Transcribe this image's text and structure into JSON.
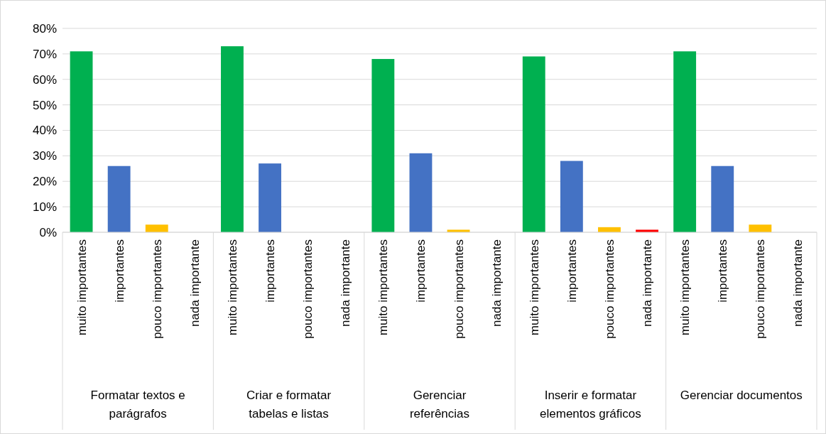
{
  "chart_data": {
    "type": "bar",
    "categories": [
      "muito importantes",
      "importantes",
      "pouco importantes",
      "nada importante",
      "muito importantes",
      "importantes",
      "pouco importantes",
      "nada importante",
      "muito importantes",
      "importantes",
      "pouco importantes",
      "nada importante",
      "muito importantes",
      "importantes",
      "pouco importantes",
      "nada importante",
      "muito importantes",
      "importantes",
      "pouco importantes",
      "nada importante"
    ],
    "values": [
      71,
      26,
      3,
      0,
      73,
      27,
      0,
      0,
      68,
      31,
      1,
      0,
      69,
      28,
      2,
      1,
      71,
      26,
      3,
      0
    ],
    "colors": [
      "#00b050",
      "#4472c4",
      "#ffc000",
      "#ff0000",
      "#00b050",
      "#4472c4",
      "#ffc000",
      "#ff0000",
      "#00b050",
      "#4472c4",
      "#ffc000",
      "#ff0000",
      "#00b050",
      "#4472c4",
      "#ffc000",
      "#ff0000",
      "#00b050",
      "#4472c4",
      "#ffc000",
      "#ff0000"
    ],
    "annotations": [
      "Formatar textos e parágrafos",
      "Criar e formatar tabelas e listas",
      "Gerenciar referências",
      "Inserir e formatar elementos gráficos",
      "Gerenciar documentos"
    ],
    "ylim": [
      0,
      80
    ],
    "yticks": [
      {
        "value": 0,
        "label": "0%"
      },
      {
        "value": 10,
        "label": "10%"
      },
      {
        "value": 20,
        "label": "20%"
      },
      {
        "value": 30,
        "label": "30%"
      },
      {
        "value": 40,
        "label": "40%"
      },
      {
        "value": 50,
        "label": "50%"
      },
      {
        "value": 60,
        "label": "60%"
      },
      {
        "value": 70,
        "label": "70%"
      },
      {
        "value": 80,
        "label": "80%"
      }
    ],
    "grid": "y"
  }
}
